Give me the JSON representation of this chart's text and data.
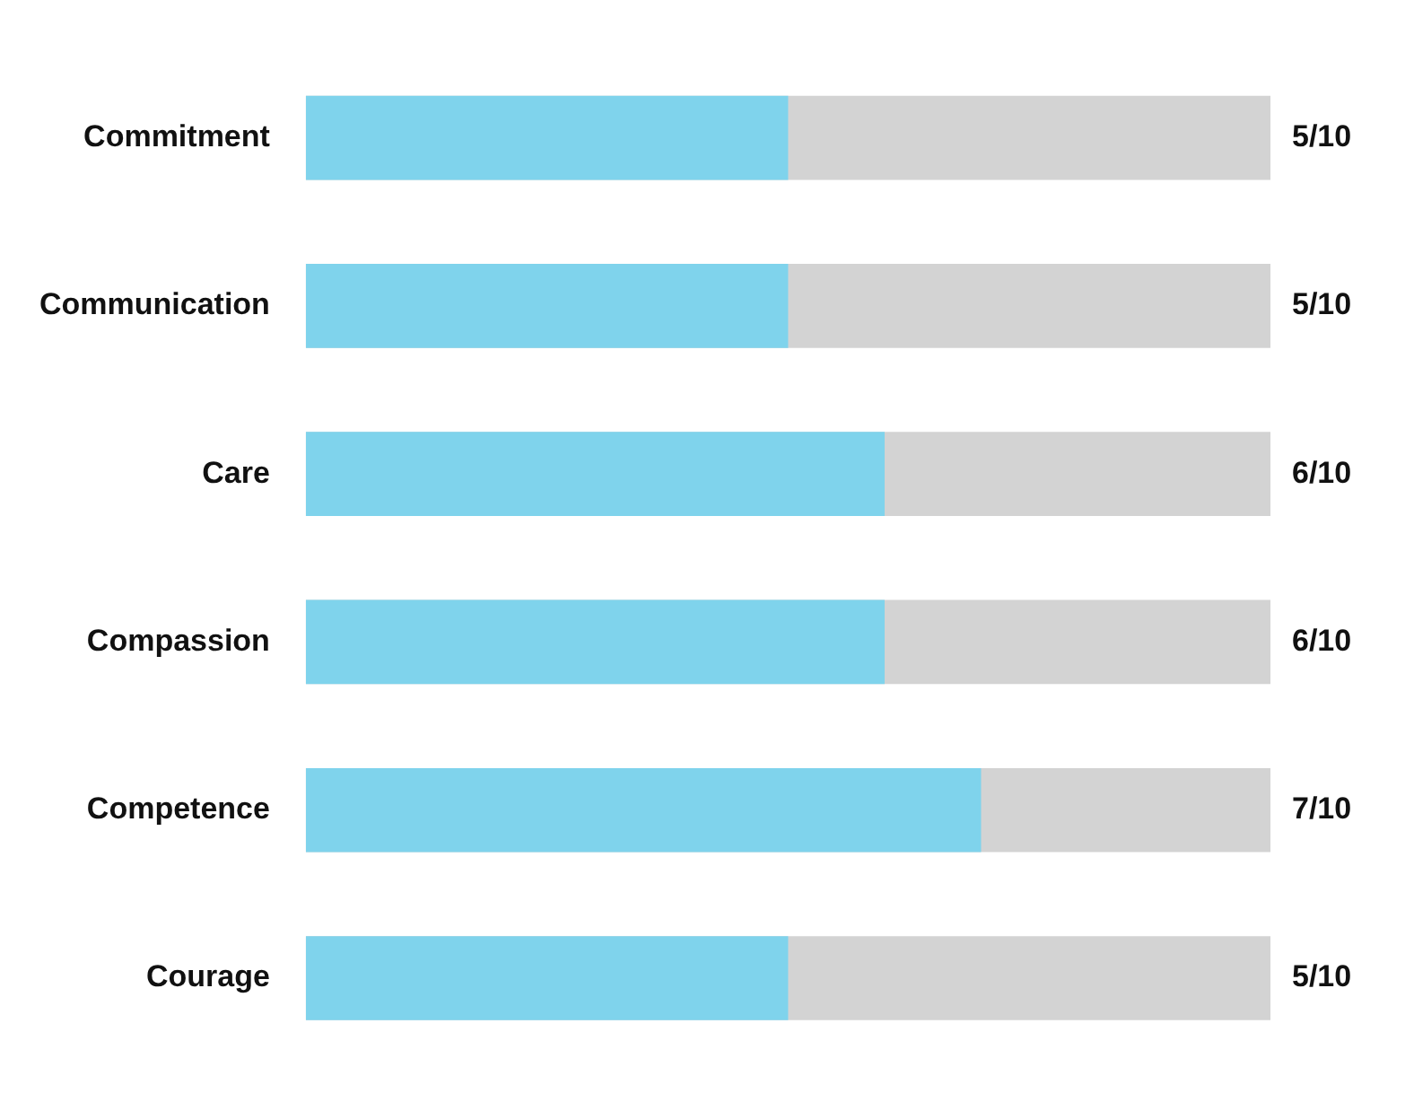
{
  "chart_data": {
    "type": "bar",
    "orientation": "horizontal",
    "categories": [
      "Commitment",
      "Communication",
      "Care",
      "Compassion",
      "Competence",
      "Courage"
    ],
    "values": [
      0.5,
      0.5,
      0.6,
      0.6,
      0.7,
      0.5
    ],
    "value_labels": [
      "5/10",
      "5/10",
      "6/10",
      "6/10",
      "7/10",
      "5/10"
    ],
    "color": "#7fd3ec",
    "xlim": [
      0,
      1
    ],
    "tick_labels": "y",
    "grid": false,
    "legend": false
  }
}
